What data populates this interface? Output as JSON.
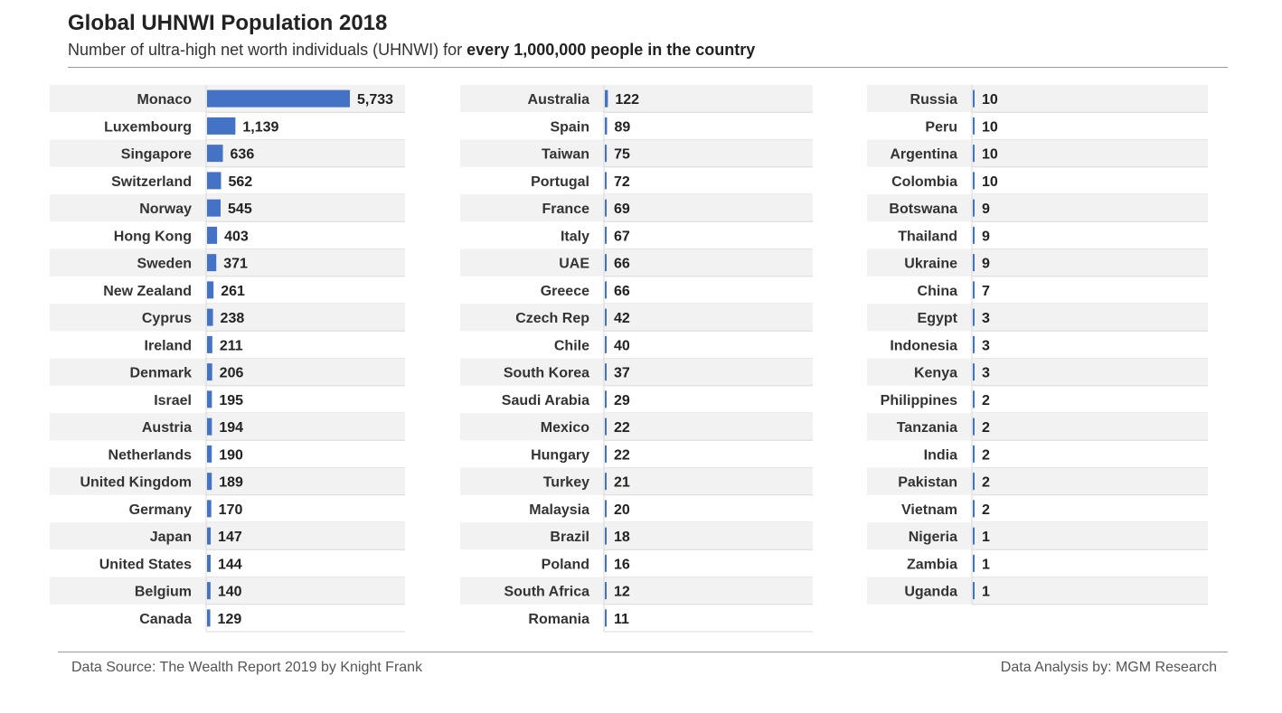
{
  "header": {
    "title": "Global UHNWI Population 2018",
    "subtitle_prefix": "Number of ultra-high net worth individuals (UHNWI) for ",
    "subtitle_bold": "every 1,000,000 people in the country"
  },
  "footer": {
    "source": "Data Source: The Wealth Report 2019 by Knight Frank",
    "analysis": "Data Analysis by: MGM Research"
  },
  "colors": {
    "bar": "#4472C4",
    "band": "#f2f2f2",
    "divider": "#d9d9d9"
  },
  "chart_data": {
    "type": "bar",
    "orientation": "horizontal",
    "title": "Global UHNWI Population 2018",
    "subtitle": "Number of ultra-high net worth individuals (UHNWI) for every 1,000,000 people in the country",
    "xlim": [
      0,
      5733
    ],
    "grid": false,
    "legend": "none",
    "panels": [
      {
        "categories": [
          "Monaco",
          "Luxembourg",
          "Singapore",
          "Switzerland",
          "Norway",
          "Hong Kong",
          "Sweden",
          "New Zealand",
          "Cyprus",
          "Ireland",
          "Denmark",
          "Israel",
          "Austria",
          "Netherlands",
          "United Kingdom",
          "Germany",
          "Japan",
          "United States",
          "Belgium",
          "Canada"
        ],
        "values": [
          5733,
          1139,
          636,
          562,
          545,
          403,
          371,
          261,
          238,
          211,
          206,
          195,
          194,
          190,
          189,
          170,
          147,
          144,
          140,
          129
        ],
        "value_labels": [
          "5,733",
          "1,139",
          "636",
          "562",
          "545",
          "403",
          "371",
          "261",
          "238",
          "211",
          "206",
          "195",
          "194",
          "190",
          "189",
          "170",
          "147",
          "144",
          "140",
          "129"
        ]
      },
      {
        "categories": [
          "Australia",
          "Spain",
          "Taiwan",
          "Portugal",
          "France",
          "Italy",
          "UAE",
          "Greece",
          "Czech Rep",
          "Chile",
          "South Korea",
          "Saudi Arabia",
          "Mexico",
          "Hungary",
          "Turkey",
          "Malaysia",
          "Brazil",
          "Poland",
          "South Africa",
          "Romania"
        ],
        "values": [
          122,
          89,
          75,
          72,
          69,
          67,
          66,
          66,
          42,
          40,
          37,
          29,
          22,
          22,
          21,
          20,
          18,
          16,
          12,
          11
        ],
        "value_labels": [
          "122",
          "89",
          "75",
          "72",
          "69",
          "67",
          "66",
          "66",
          "42",
          "40",
          "37",
          "29",
          "22",
          "22",
          "21",
          "20",
          "18",
          "16",
          "12",
          "11"
        ]
      },
      {
        "categories": [
          "Russia",
          "Peru",
          "Argentina",
          "Colombia",
          "Botswana",
          "Thailand",
          "Ukraine",
          "China",
          "Egypt",
          "Indonesia",
          "Kenya",
          "Philippines",
          "Tanzania",
          "India",
          "Pakistan",
          "Vietnam",
          "Nigeria",
          "Zambia",
          "Uganda"
        ],
        "values": [
          10,
          10,
          10,
          10,
          9,
          9,
          9,
          7,
          3,
          3,
          3,
          2,
          2,
          2,
          2,
          2,
          1,
          1,
          1
        ],
        "value_labels": [
          "10",
          "10",
          "10",
          "10",
          "9",
          "9",
          "9",
          "7",
          "3",
          "3",
          "3",
          "2",
          "2",
          "2",
          "2",
          "2",
          "1",
          "1",
          "1"
        ]
      }
    ]
  }
}
